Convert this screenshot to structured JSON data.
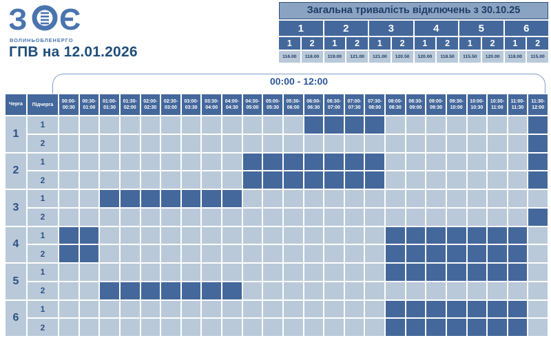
{
  "logo": {
    "mark_left": "З",
    "mark_right": "Є",
    "company": "ВОЛИНЬОБЛЕНЕРГО"
  },
  "page": {
    "title": "ГПВ на 12.01.2026"
  },
  "summary": {
    "title": "Загальна тривалість відключень з 30.10.25",
    "queues": [
      "1",
      "2",
      "3",
      "4",
      "5",
      "6"
    ],
    "subqueues": [
      "1",
      "2",
      "1",
      "2",
      "1",
      "2",
      "1",
      "2",
      "1",
      "2",
      "1",
      "2"
    ],
    "values": [
      "116.00",
      "118.00",
      "119.00",
      "121.00",
      "121.00",
      "120.50",
      "120.00",
      "118.50",
      "115.50",
      "120.00",
      "118.00",
      "115.00"
    ]
  },
  "timeline": {
    "range_label": "00:00 - 12:00"
  },
  "grid": {
    "col1_header": "Черга",
    "col2_header": "Підчерга",
    "time_slots": [
      "00:00-00:30",
      "00:30-01:00",
      "01:00-01:30",
      "01:30-02:00",
      "02:00-02:30",
      "02:30-03:00",
      "03:00-03:30",
      "03:30-04:00",
      "04:00-04:30",
      "04:30-05:00",
      "05:00-05:30",
      "05:30-06:00",
      "06:00-06:30",
      "06:30-07:00",
      "07:00-07:30",
      "07:30-08:00",
      "08:00-08:30",
      "08:30-09:00",
      "09:00-09:30",
      "09:30-10:00",
      "10:00-10:30",
      "10:30-11:00",
      "11:00-11:30",
      "11:30-12:00"
    ],
    "rows": [
      {
        "queue": "1",
        "subqueue": "1",
        "cells": [
          0,
          0,
          0,
          0,
          0,
          0,
          0,
          0,
          0,
          0,
          0,
          0,
          1,
          1,
          1,
          1,
          0,
          0,
          0,
          0,
          0,
          0,
          0,
          1
        ]
      },
      {
        "queue": "1",
        "subqueue": "2",
        "cells": [
          0,
          0,
          0,
          0,
          0,
          0,
          0,
          0,
          0,
          0,
          0,
          0,
          0,
          0,
          0,
          0,
          0,
          0,
          0,
          0,
          0,
          0,
          0,
          1
        ]
      },
      {
        "queue": "2",
        "subqueue": "1",
        "cells": [
          0,
          0,
          0,
          0,
          0,
          0,
          0,
          0,
          0,
          1,
          1,
          1,
          1,
          1,
          1,
          1,
          0,
          0,
          0,
          0,
          0,
          0,
          0,
          1
        ]
      },
      {
        "queue": "2",
        "subqueue": "2",
        "cells": [
          0,
          0,
          0,
          0,
          0,
          0,
          0,
          0,
          0,
          1,
          1,
          1,
          1,
          1,
          1,
          1,
          0,
          0,
          0,
          0,
          0,
          0,
          0,
          1
        ]
      },
      {
        "queue": "3",
        "subqueue": "1",
        "cells": [
          0,
          0,
          1,
          1,
          1,
          1,
          1,
          1,
          1,
          0,
          0,
          0,
          0,
          0,
          0,
          0,
          0,
          0,
          0,
          0,
          0,
          0,
          0,
          0
        ]
      },
      {
        "queue": "3",
        "subqueue": "2",
        "cells": [
          0,
          0,
          0,
          0,
          0,
          0,
          0,
          0,
          0,
          0,
          0,
          0,
          0,
          0,
          0,
          0,
          0,
          0,
          0,
          0,
          0,
          0,
          0,
          1
        ]
      },
      {
        "queue": "4",
        "subqueue": "1",
        "cells": [
          1,
          1,
          0,
          0,
          0,
          0,
          0,
          0,
          0,
          0,
          0,
          0,
          0,
          0,
          0,
          0,
          1,
          1,
          1,
          1,
          1,
          1,
          1,
          0
        ]
      },
      {
        "queue": "4",
        "subqueue": "2",
        "cells": [
          1,
          1,
          0,
          0,
          0,
          0,
          0,
          0,
          0,
          0,
          0,
          0,
          0,
          0,
          0,
          0,
          1,
          1,
          1,
          1,
          1,
          1,
          1,
          0
        ]
      },
      {
        "queue": "5",
        "subqueue": "1",
        "cells": [
          0,
          0,
          0,
          0,
          0,
          0,
          0,
          0,
          0,
          0,
          0,
          0,
          0,
          0,
          0,
          0,
          1,
          1,
          1,
          1,
          1,
          1,
          1,
          0
        ]
      },
      {
        "queue": "5",
        "subqueue": "2",
        "cells": [
          0,
          0,
          1,
          1,
          1,
          1,
          1,
          1,
          1,
          0,
          0,
          0,
          0,
          0,
          0,
          0,
          0,
          0,
          0,
          0,
          0,
          0,
          0,
          0
        ]
      },
      {
        "queue": "6",
        "subqueue": "1",
        "cells": [
          0,
          0,
          0,
          0,
          0,
          0,
          0,
          0,
          0,
          0,
          0,
          0,
          0,
          0,
          0,
          0,
          1,
          1,
          1,
          1,
          1,
          1,
          1,
          0
        ]
      },
      {
        "queue": "6",
        "subqueue": "2",
        "cells": [
          0,
          0,
          0,
          0,
          0,
          0,
          0,
          0,
          0,
          0,
          0,
          0,
          0,
          0,
          0,
          0,
          1,
          1,
          1,
          1,
          1,
          1,
          1,
          0
        ]
      }
    ]
  },
  "colors": {
    "outage_cell": "#44689b",
    "clear_cell": "#b9c9d9",
    "summary_title_bg": "#8ba3c2",
    "navy_text": "#1f4e79",
    "logo_blue": "#4a74ae",
    "brace_line": "#7e9cc8"
  },
  "chart_data": [
    {
      "type": "table",
      "title": "Загальна тривалість відключень з 30.10.25",
      "columns": [
        "1.1",
        "1.2",
        "2.1",
        "2.2",
        "3.1",
        "3.2",
        "4.1",
        "4.2",
        "5.1",
        "5.2",
        "6.1",
        "6.2"
      ],
      "values": [
        116.0,
        118.0,
        119.0,
        121.0,
        121.0,
        120.5,
        120.0,
        118.5,
        115.5,
        120.0,
        118.0,
        115.0
      ],
      "note": "total outage duration in hours per queue.subqueue since 30.10.25"
    },
    {
      "type": "heatmap",
      "title": "ГПВ на 12.01.2026",
      "x": [
        "00:00-00:30",
        "00:30-01:00",
        "01:00-01:30",
        "01:30-02:00",
        "02:00-02:30",
        "02:30-03:00",
        "03:00-03:30",
        "03:30-04:00",
        "04:00-04:30",
        "04:30-05:00",
        "05:00-05:30",
        "05:30-06:00",
        "06:00-06:30",
        "06:30-07:00",
        "07:00-07:30",
        "07:30-08:00",
        "08:00-08:30",
        "08:30-09:00",
        "09:00-09:30",
        "09:30-10:00",
        "10:00-10:30",
        "10:30-11:00",
        "11:00-11:30",
        "11:30-12:00"
      ],
      "x_range_label": "00:00 - 12:00",
      "y": [
        "1.1",
        "1.2",
        "2.1",
        "2.2",
        "3.1",
        "3.2",
        "4.1",
        "4.2",
        "5.1",
        "5.2",
        "6.1",
        "6.2"
      ],
      "value_meaning": "1 = outage (dark blue), 0 = power on (light blue)",
      "outage_intervals": {
        "1.1": [
          "06:00-08:00",
          "11:30-12:00"
        ],
        "1.2": [
          "11:30-12:00"
        ],
        "2.1": [
          "04:30-08:00",
          "11:30-12:00"
        ],
        "2.2": [
          "04:30-08:00",
          "11:30-12:00"
        ],
        "3.1": [
          "01:00-04:30"
        ],
        "3.2": [
          "11:30-12:00"
        ],
        "4.1": [
          "00:00-01:00",
          "08:00-11:30"
        ],
        "4.2": [
          "00:00-01:00",
          "08:00-11:30"
        ],
        "5.1": [
          "08:00-11:30"
        ],
        "5.2": [
          "01:00-04:30"
        ],
        "6.1": [
          "08:00-11:30"
        ],
        "6.2": [
          "08:00-11:30"
        ]
      }
    }
  ]
}
